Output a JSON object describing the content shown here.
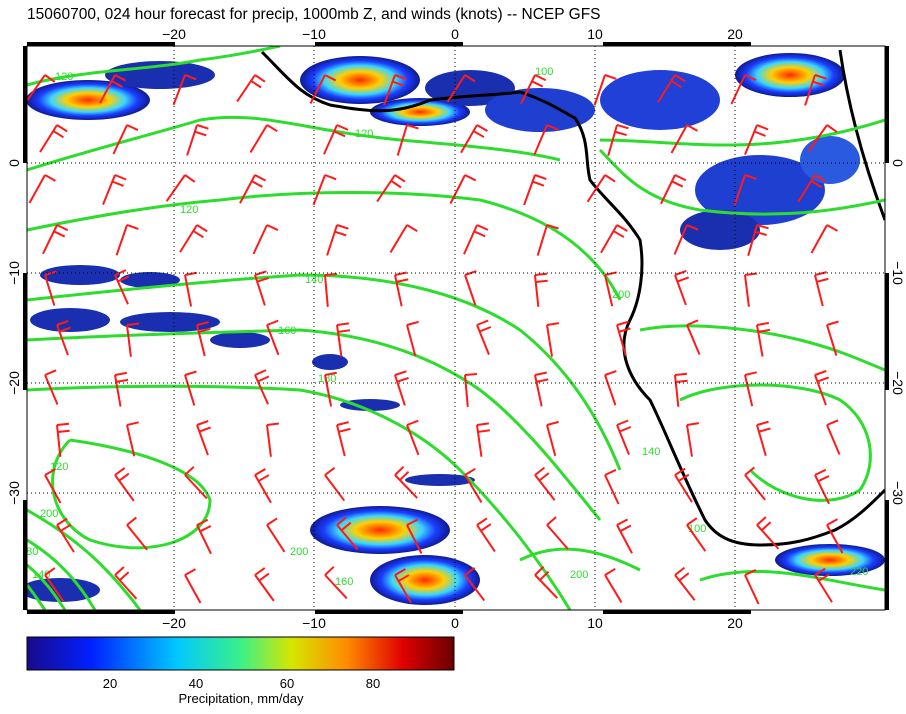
{
  "title": "15060700, 024 hour forecast for precip, 1000mb Z, and winds (knots) -- NCEP GFS",
  "map": {
    "lon_range": [
      -30,
      30
    ],
    "lat_range": [
      -40,
      8
    ],
    "lon_ticks": [
      {
        "value": -20,
        "label": "−20"
      },
      {
        "value": -10,
        "label": "−10"
      },
      {
        "value": 0,
        "label": "0"
      },
      {
        "value": 10,
        "label": "10"
      },
      {
        "value": 20,
        "label": "20"
      }
    ],
    "lat_ticks": [
      {
        "value": 0,
        "label": "0"
      },
      {
        "value": -10,
        "label": "−10"
      },
      {
        "value": -20,
        "label": "−20"
      },
      {
        "value": -30,
        "label": "−30"
      }
    ],
    "grid": "dotted",
    "contour_labels": [
      "120",
      "120",
      "100",
      "120",
      "140",
      "160",
      "180",
      "200",
      "180",
      "140",
      "200",
      "200",
      "140",
      "160",
      "100",
      "200",
      "120",
      "220"
    ]
  },
  "colorbar": {
    "ticks": [
      "20",
      "40",
      "60",
      "80"
    ],
    "label": "Precipitation, mm/day",
    "range": [
      0,
      100
    ]
  },
  "colors": {
    "contours": "#2edc2e",
    "wind_barbs": "#ff1a1a",
    "coastline": "#000000"
  }
}
